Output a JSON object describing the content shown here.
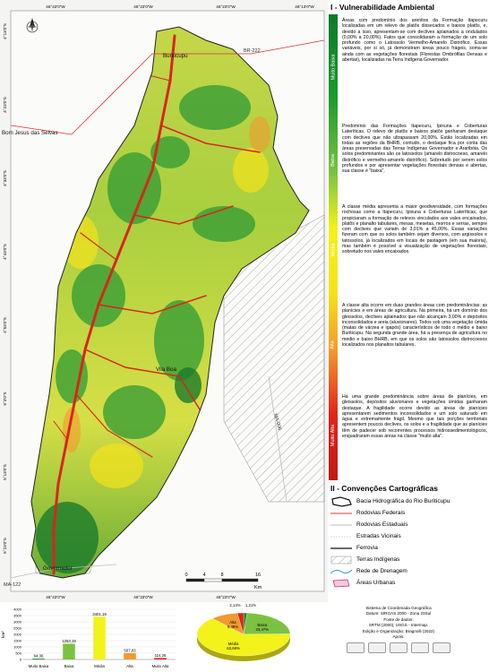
{
  "map": {
    "coords_top": [
      "46°43'0\"W",
      "46°33'0\"W",
      "46°23'0\"W",
      "46°13'0\"W"
    ],
    "coords_bottom": [
      "46°43'0\"W",
      "46°33'0\"W",
      "46°23'0\"W"
    ],
    "coords_left": [
      "4°13'0\"S",
      "4°23'0\"S",
      "4°33'0\"S",
      "4°43'0\"S",
      "4°53'0\"S",
      "5°3'0\"S",
      "5°13'0\"S",
      "5°23'0\"S"
    ],
    "places": [
      "Buriticupu",
      "Bom Jesus das Selvas",
      "Vila Boa",
      "Governador"
    ],
    "roads": [
      "BR-222",
      "MA-122",
      "MA-006"
    ],
    "scale": {
      "ticks": [
        0,
        4,
        8,
        16
      ],
      "unit": "Km"
    }
  },
  "panel": {
    "title": "I - Vulnerabilidade Ambiental",
    "classes": [
      {
        "name": "Muito Baixa",
        "text": "Áreas com predomínio dos arenitos da Formação Itapecuru localizadas em um relevo de platôs dissecados e baixos platôs, e, devido a isso, apresentam-se com declives aplainados a ondulados (0,00% a 20,00%). Fatos que consolidaram a formação de um solo profundo como o Latossolo Vermelho-Amarelo Distrófico. Essas variáveis, por si só, já demonstram áreas pouco frágeis, soma-se ainda com as vegetações florestais (Florestas Ombrófilas Densas e abertas), localizadas na Terra Indígena Governador."
      },
      {
        "name": "Baixa",
        "text": "Predomínio das Formações Itapecuru, Ipixuna e Coberturas Lateríticas. O relevo de platôs e baixos platôs ganharam destaque com declives que não ultrapassam 20,00%. Estão localizadas em todas as regiões da BHRB, contudo, o destaque fica por conta das áreas preservadas das Terras Indígenas Governador e Araribóia. Os solos predominantes são os latossolos (amarelo distrocoeso, amarelo distrófico e vermelho-amarelo distrófico). Sobretudo por serem solos profundos e por apresentar vegetações florestais densas e abertas, sua classe é \"baixa\"."
      },
      {
        "name": "Média",
        "text": "A classe média apresenta a maior geodiversidade, com formações rochosas como a Itapecuru, Ipixuna e Coberturas Lateríticas, que propiciaram a formação de relevos vinculados aos vales encaixados, platôs e planalto tabulares, mesas, mesetas, morros e serras, sempre com declives que variam de 3,01% a 45,00%. Essas variações fizeram com que os solos também sejam diversos, com argissolos e latossolos, já localizados em locais de pastagem (em sua maioria), mas também é possível a visualização de vegetações florestais, sobretudo nos vales encaixados."
      },
      {
        "name": "Alta",
        "text": "A classe alta ocorre em duas grandes áreas com predominâncias: as planícies e em áreas de agricultura. Na primeira, há um domínio dos gleissolos, declives aplainados que não alcançam 3,00% e depósitos inconsolidados e areia (aluvionares). Todos sob uma vegetação úmida (matas de várzea e igapós) característicos de todo o médio e baixo Buriticupu. Na segunda grande área, há a presença de agricultura no médio e baixo BHRB, em que os solos são latossolos distrocoesos localizados nos planaltos tabulares."
      },
      {
        "name": "Muito Alta",
        "text": "Há uma grande predominância sobre áreas de planícies, em gleissolos, depósitos aluvionares e vegetações úmidas ganharam destaque. A fragilidade ocorre devido as áreas de planícies apresentarem sedimentos inconsolidados e um solo saturado em água e extremamente frágil. Mesmo que tais porções territoriais apresentem poucos declives, os solos e a fragilidade que as planícies têm de padecer sob recorrentes processos hidrossedimentológicos, enquadraram essas áreas na classe \"muito alta\"."
      }
    ],
    "legend_title": "II - Convenções Cartográficas",
    "legend": [
      "Bacia Hidrográfica do Rio Buriticupu",
      "Rodovias Federais",
      "Rodovias Estaduais",
      "Estradas Vicinais",
      "Ferrovia",
      "Terras Indígenas",
      "Rede de Drenagem",
      "Áreas Urbanas"
    ]
  },
  "chart_data": [
    {
      "type": "bar",
      "ylabel": "km²",
      "categories": [
        "Muito Baixa",
        "Baixa",
        "Média",
        "Alta",
        "Muito Alta"
      ],
      "values": [
        64.36,
        1253.19,
        3401.19,
        507.03,
        114.26
      ],
      "value_labels": [
        "64,36",
        "1253,19",
        "3401,19",
        "507,03",
        "114,26"
      ],
      "colors": [
        "#1a8a2a",
        "#7cc242",
        "#f3f21a",
        "#f29a2e",
        "#e2231a"
      ],
      "ylim": [
        0,
        4000
      ],
      "yticks": [
        0,
        500,
        1000,
        1500,
        2000,
        2500,
        3000,
        3500,
        4000
      ],
      "grid": true
    },
    {
      "type": "pie",
      "categories": [
        "Muito Baixa",
        "Baixa",
        "Média",
        "Alta",
        "Muito Alta"
      ],
      "values": [
        1.21,
        23.47,
        63.69,
        9.49,
        2.14
      ],
      "value_labels": [
        "1,21%",
        "23,47%",
        "63,69%",
        "9,49%",
        "2,14%"
      ],
      "colors": [
        "#1a8a2a",
        "#7cc242",
        "#f3f21a",
        "#f29a2e",
        "#e2231a"
      ]
    }
  ],
  "credits": [
    "Sistema de Coordenada Geográfica",
    "Datum: SIRGAS 2000 - Zona 23Sul",
    "Fonte de dados:",
    "SRTM (2000); USGS - Intermap.",
    "Edição e Organização: Bragnolli (2022)",
    "Apoio:"
  ]
}
